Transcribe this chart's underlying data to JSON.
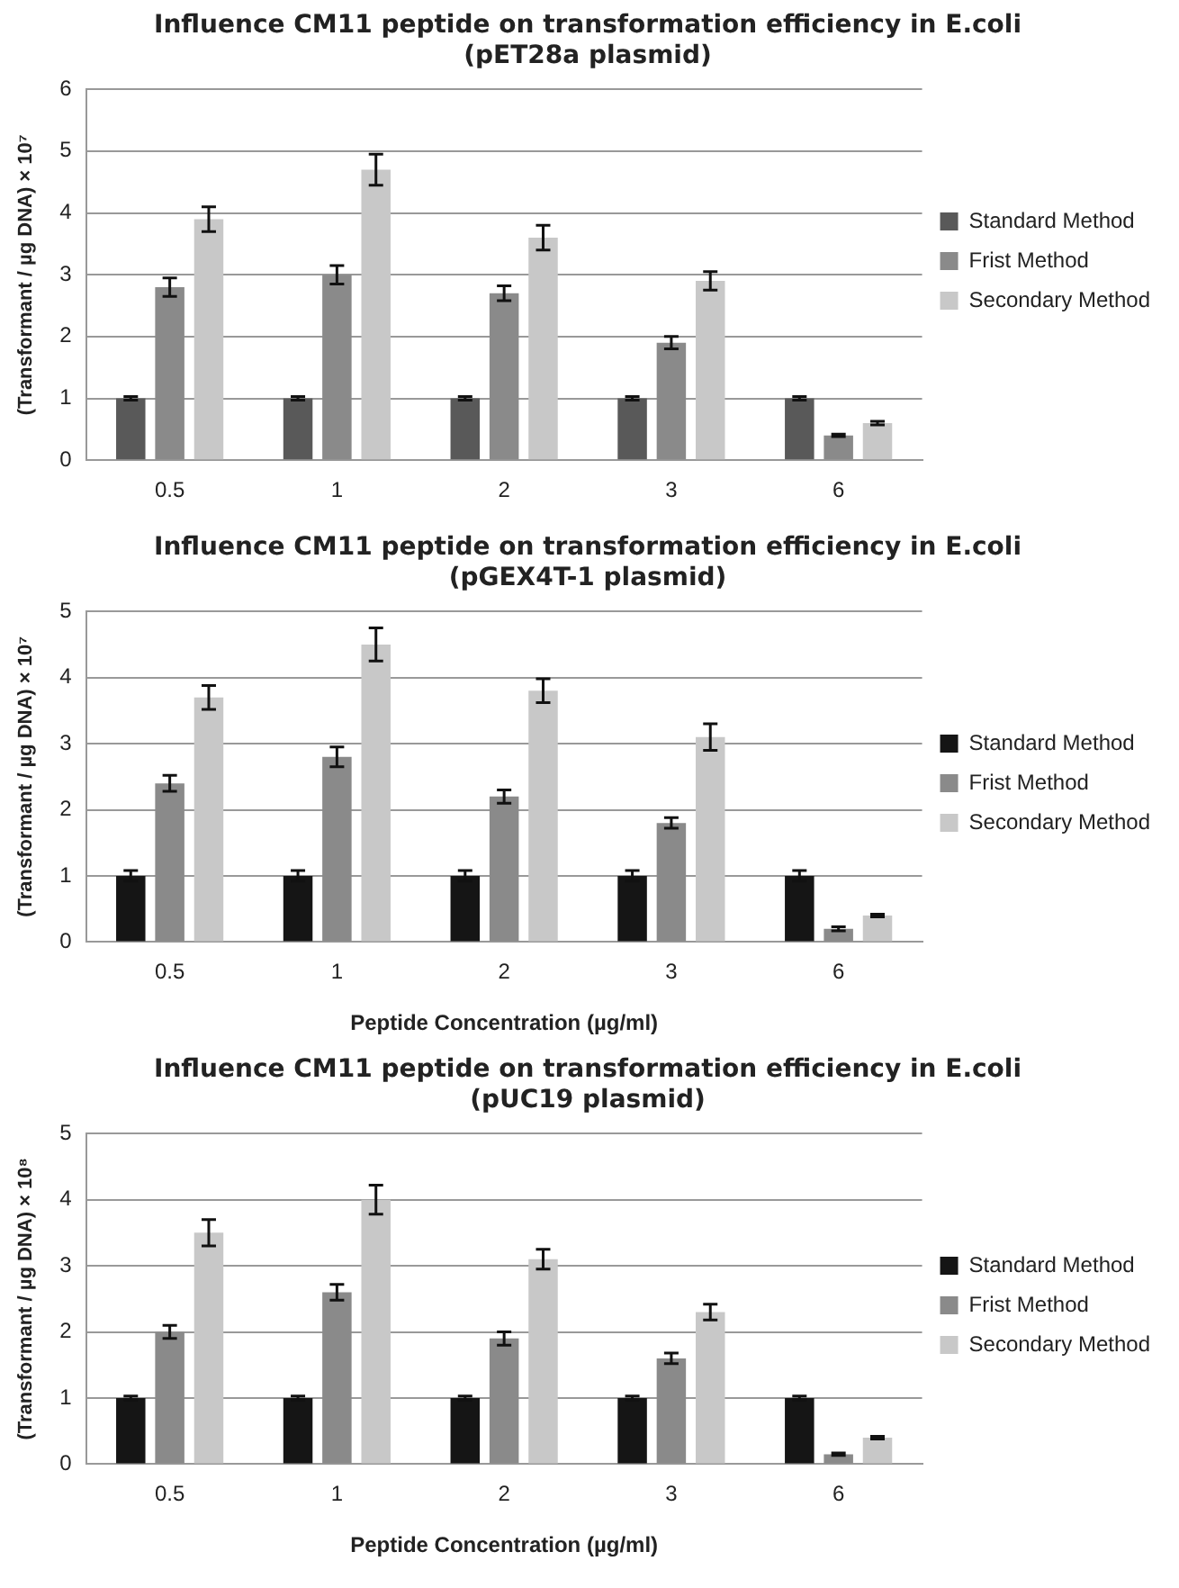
{
  "chart_data": [
    {
      "type": "bar",
      "title": "Influence CM11 peptide on transformation efficiency in E.coli",
      "subtitle": "(pET28a plasmid)",
      "ylabel": "(Transformant / µg DNA) × 10⁷",
      "categories": [
        "0.5",
        "1",
        "2",
        "3",
        "6"
      ],
      "ylim": [
        0,
        6
      ],
      "yticks": [
        0,
        1,
        2,
        3,
        4,
        5,
        6
      ],
      "grid": "y",
      "legend": "right",
      "series": [
        {
          "name": "Standard Method",
          "color": "#595959",
          "values": [
            1,
            1,
            1,
            1,
            1
          ],
          "errors": [
            0.03,
            0.03,
            0.03,
            0.03,
            0.03
          ]
        },
        {
          "name": "Frist Method",
          "color": "#8a8a8a",
          "values": [
            2.8,
            3.0,
            2.7,
            1.9,
            0.4
          ],
          "errors": [
            0.15,
            0.15,
            0.12,
            0.1,
            0.02
          ]
        },
        {
          "name": "Secondary Method",
          "color": "#c8c8c8",
          "values": [
            3.9,
            4.7,
            3.6,
            2.9,
            0.6
          ],
          "errors": [
            0.2,
            0.25,
            0.2,
            0.15,
            0.03
          ]
        }
      ]
    },
    {
      "type": "bar",
      "title": "Influence CM11 peptide on transformation efficiency in E.coli",
      "subtitle": "(pGEX4T-1 plasmid)",
      "xlabel": "Peptide Concentration (µg/ml)",
      "ylabel": "(Transformant / µg DNA) × 10⁷",
      "categories": [
        "0.5",
        "1",
        "2",
        "3",
        "6"
      ],
      "ylim": [
        0,
        5
      ],
      "yticks": [
        0,
        1,
        2,
        3,
        4,
        5
      ],
      "grid": "y",
      "legend": "right",
      "series": [
        {
          "name": "Standard Method",
          "color": "#151515",
          "values": [
            1,
            1,
            1,
            1,
            1
          ],
          "errors": [
            0.08,
            0.08,
            0.08,
            0.08,
            0.08
          ]
        },
        {
          "name": "Frist Method",
          "color": "#8a8a8a",
          "values": [
            2.4,
            2.8,
            2.2,
            1.8,
            0.2
          ],
          "errors": [
            0.12,
            0.15,
            0.1,
            0.08,
            0.03
          ]
        },
        {
          "name": "Secondary Method",
          "color": "#c8c8c8",
          "values": [
            3.7,
            4.5,
            3.8,
            3.1,
            0.4
          ],
          "errors": [
            0.18,
            0.25,
            0.18,
            0.2,
            0.02
          ]
        }
      ]
    },
    {
      "type": "bar",
      "title": "Influence CM11 peptide on transformation efficiency in E.coli",
      "subtitle": "(pUC19 plasmid)",
      "xlabel": "Peptide Concentration (µg/ml)",
      "ylabel": "(Transformant / µg DNA) × 10⁸",
      "categories": [
        "0.5",
        "1",
        "2",
        "3",
        "6"
      ],
      "ylim": [
        0,
        5
      ],
      "yticks": [
        0,
        1,
        2,
        3,
        4,
        5
      ],
      "grid": "y",
      "legend": "right",
      "series": [
        {
          "name": "Standard Method",
          "color": "#151515",
          "values": [
            1,
            1,
            1,
            1,
            1
          ],
          "errors": [
            0.03,
            0.03,
            0.03,
            0.03,
            0.03
          ]
        },
        {
          "name": "Frist Method",
          "color": "#8a8a8a",
          "values": [
            2.0,
            2.6,
            1.9,
            1.6,
            0.15
          ],
          "errors": [
            0.1,
            0.12,
            0.1,
            0.08,
            0.02
          ]
        },
        {
          "name": "Secondary Method",
          "color": "#c8c8c8",
          "values": [
            3.5,
            4.0,
            3.1,
            2.3,
            0.4
          ],
          "errors": [
            0.2,
            0.22,
            0.15,
            0.12,
            0.02
          ]
        }
      ]
    }
  ]
}
